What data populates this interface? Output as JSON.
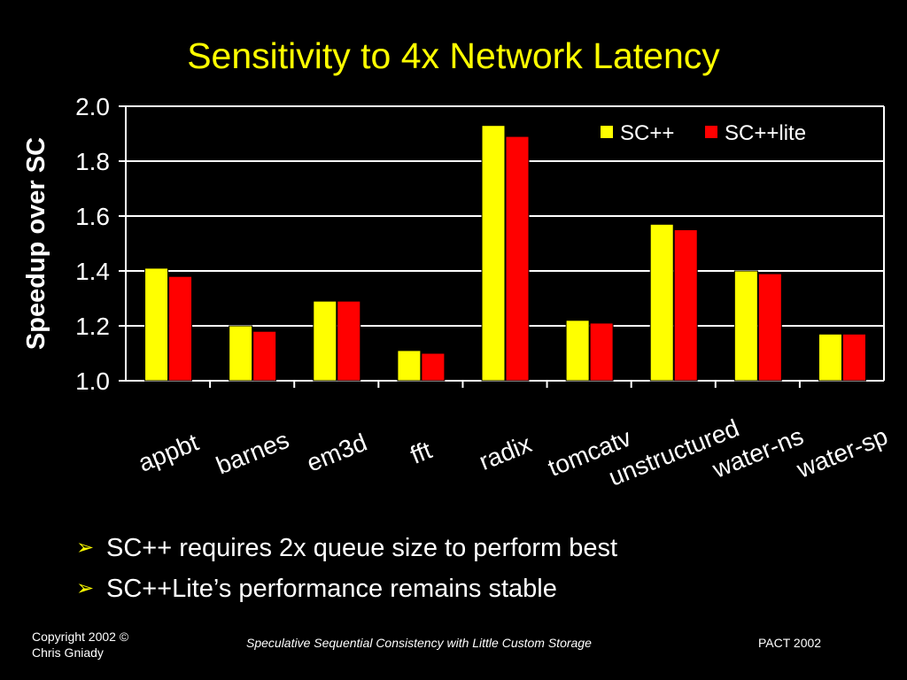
{
  "slide": {
    "title": "Sensitivity to 4x Network Latency",
    "bullets": [
      "SC++ requires 2x queue size to perform best",
      "SC++Lite’s performance remains stable"
    ],
    "footer": {
      "copyright_line1": "Copyright 2002 ©",
      "copyright_line2": "Chris Gniady",
      "paper_title": "Speculative Sequential Consistency with Little Custom Storage",
      "venue": "PACT 2002"
    }
  },
  "colors": {
    "background": "#000000",
    "title": "#ffff00",
    "sc_plus_plus": "#ffff00",
    "sc_plus_plus_lite": "#ff0000",
    "axis": "#ffffff"
  },
  "chart_data": {
    "type": "bar",
    "ylabel": "Speedup over SC",
    "ylim": [
      1.0,
      2.0
    ],
    "yticks": [
      "1.0",
      "1.2",
      "1.4",
      "1.6",
      "1.8",
      "2.0"
    ],
    "grid": true,
    "legend_position": "top-right",
    "categories": [
      "appbt",
      "barnes",
      "em3d",
      "fft",
      "radix",
      "tomcatv",
      "unstructured",
      "water-ns",
      "water-sp"
    ],
    "series": [
      {
        "name": "SC++",
        "color": "#ffff00",
        "values": [
          1.41,
          1.2,
          1.29,
          1.11,
          1.93,
          1.22,
          1.57,
          1.4,
          1.17
        ]
      },
      {
        "name": "SC++lite",
        "color": "#ff0000",
        "values": [
          1.38,
          1.18,
          1.29,
          1.1,
          1.89,
          1.21,
          1.55,
          1.39,
          1.17
        ]
      }
    ]
  }
}
